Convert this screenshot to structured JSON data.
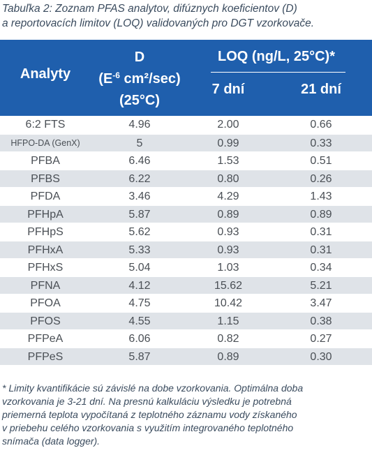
{
  "caption": {
    "line1": "Tabuľka 2: Zoznam PFAS analytov, difúznych koeficientov (D)",
    "line2": "a reportovacích limitov (LOQ) validovaných pro DGT vzorkovače."
  },
  "header": {
    "analyty": "Analyty",
    "d_line1": "D",
    "d_line2_pre": "(E",
    "d_line2_sup": "-6",
    "d_line2_post": " cm²/sec)",
    "d_line3": "(25°C)",
    "loq": "LOQ (ng/L, 25°C)*",
    "days7": "7 dní",
    "days21": "21 dní"
  },
  "rows": [
    {
      "name": "6:2 FTS",
      "d": "4.96",
      "loq7": "2.00",
      "loq21": "0.66"
    },
    {
      "name": "HFPO-DA (GenX)",
      "d": "5",
      "loq7": "0.99",
      "loq21": "0.33"
    },
    {
      "name": "PFBA",
      "d": "6.46",
      "loq7": "1.53",
      "loq21": "0.51"
    },
    {
      "name": "PFBS",
      "d": "6.22",
      "loq7": "0.80",
      "loq21": "0.26"
    },
    {
      "name": "PFDA",
      "d": "3.46",
      "loq7": "4.29",
      "loq21": "1.43"
    },
    {
      "name": "PFHpA",
      "d": "5.87",
      "loq7": "0.89",
      "loq21": "0.89"
    },
    {
      "name": "PFHpS",
      "d": "5.62",
      "loq7": "0.93",
      "loq21": "0.31"
    },
    {
      "name": "PFHxA",
      "d": "5.33",
      "loq7": "0.93",
      "loq21": "0.31"
    },
    {
      "name": "PFHxS",
      "d": "5.04",
      "loq7": "1.03",
      "loq21": "0.34"
    },
    {
      "name": "PFNA",
      "d": "4.12",
      "loq7": "15.62",
      "loq21": "5.21"
    },
    {
      "name": "PFOA",
      "d": "4.75",
      "loq7": "10.42",
      "loq21": "3.47"
    },
    {
      "name": "PFOS",
      "d": "4.55",
      "loq7": "1.15",
      "loq21": "0.38"
    },
    {
      "name": "PFPeA",
      "d": "6.06",
      "loq7": "0.82",
      "loq21": "0.27"
    },
    {
      "name": "PFPeS",
      "d": "5.87",
      "loq7": "0.89",
      "loq21": "0.30"
    }
  ],
  "footnote": {
    "line1": "* Limity kvantifikácie sú závislé na dobe vzorkovania. Optimálna doba",
    "line2": "vzorkovania je 3-21 dní. Na presnú kalkuláciu výsledku je potrebná",
    "line3": "priemerná teplota vypočítaná z teplotného záznamu vody získaného",
    "line4": "v priebehu celého vzorkovania s využitím integrovaného teplotného",
    "line5": "snímača (data logger)."
  },
  "colors": {
    "header_bg": "#1f5fad",
    "stripe": "#dfe3e8",
    "text": "#4a4f55"
  }
}
